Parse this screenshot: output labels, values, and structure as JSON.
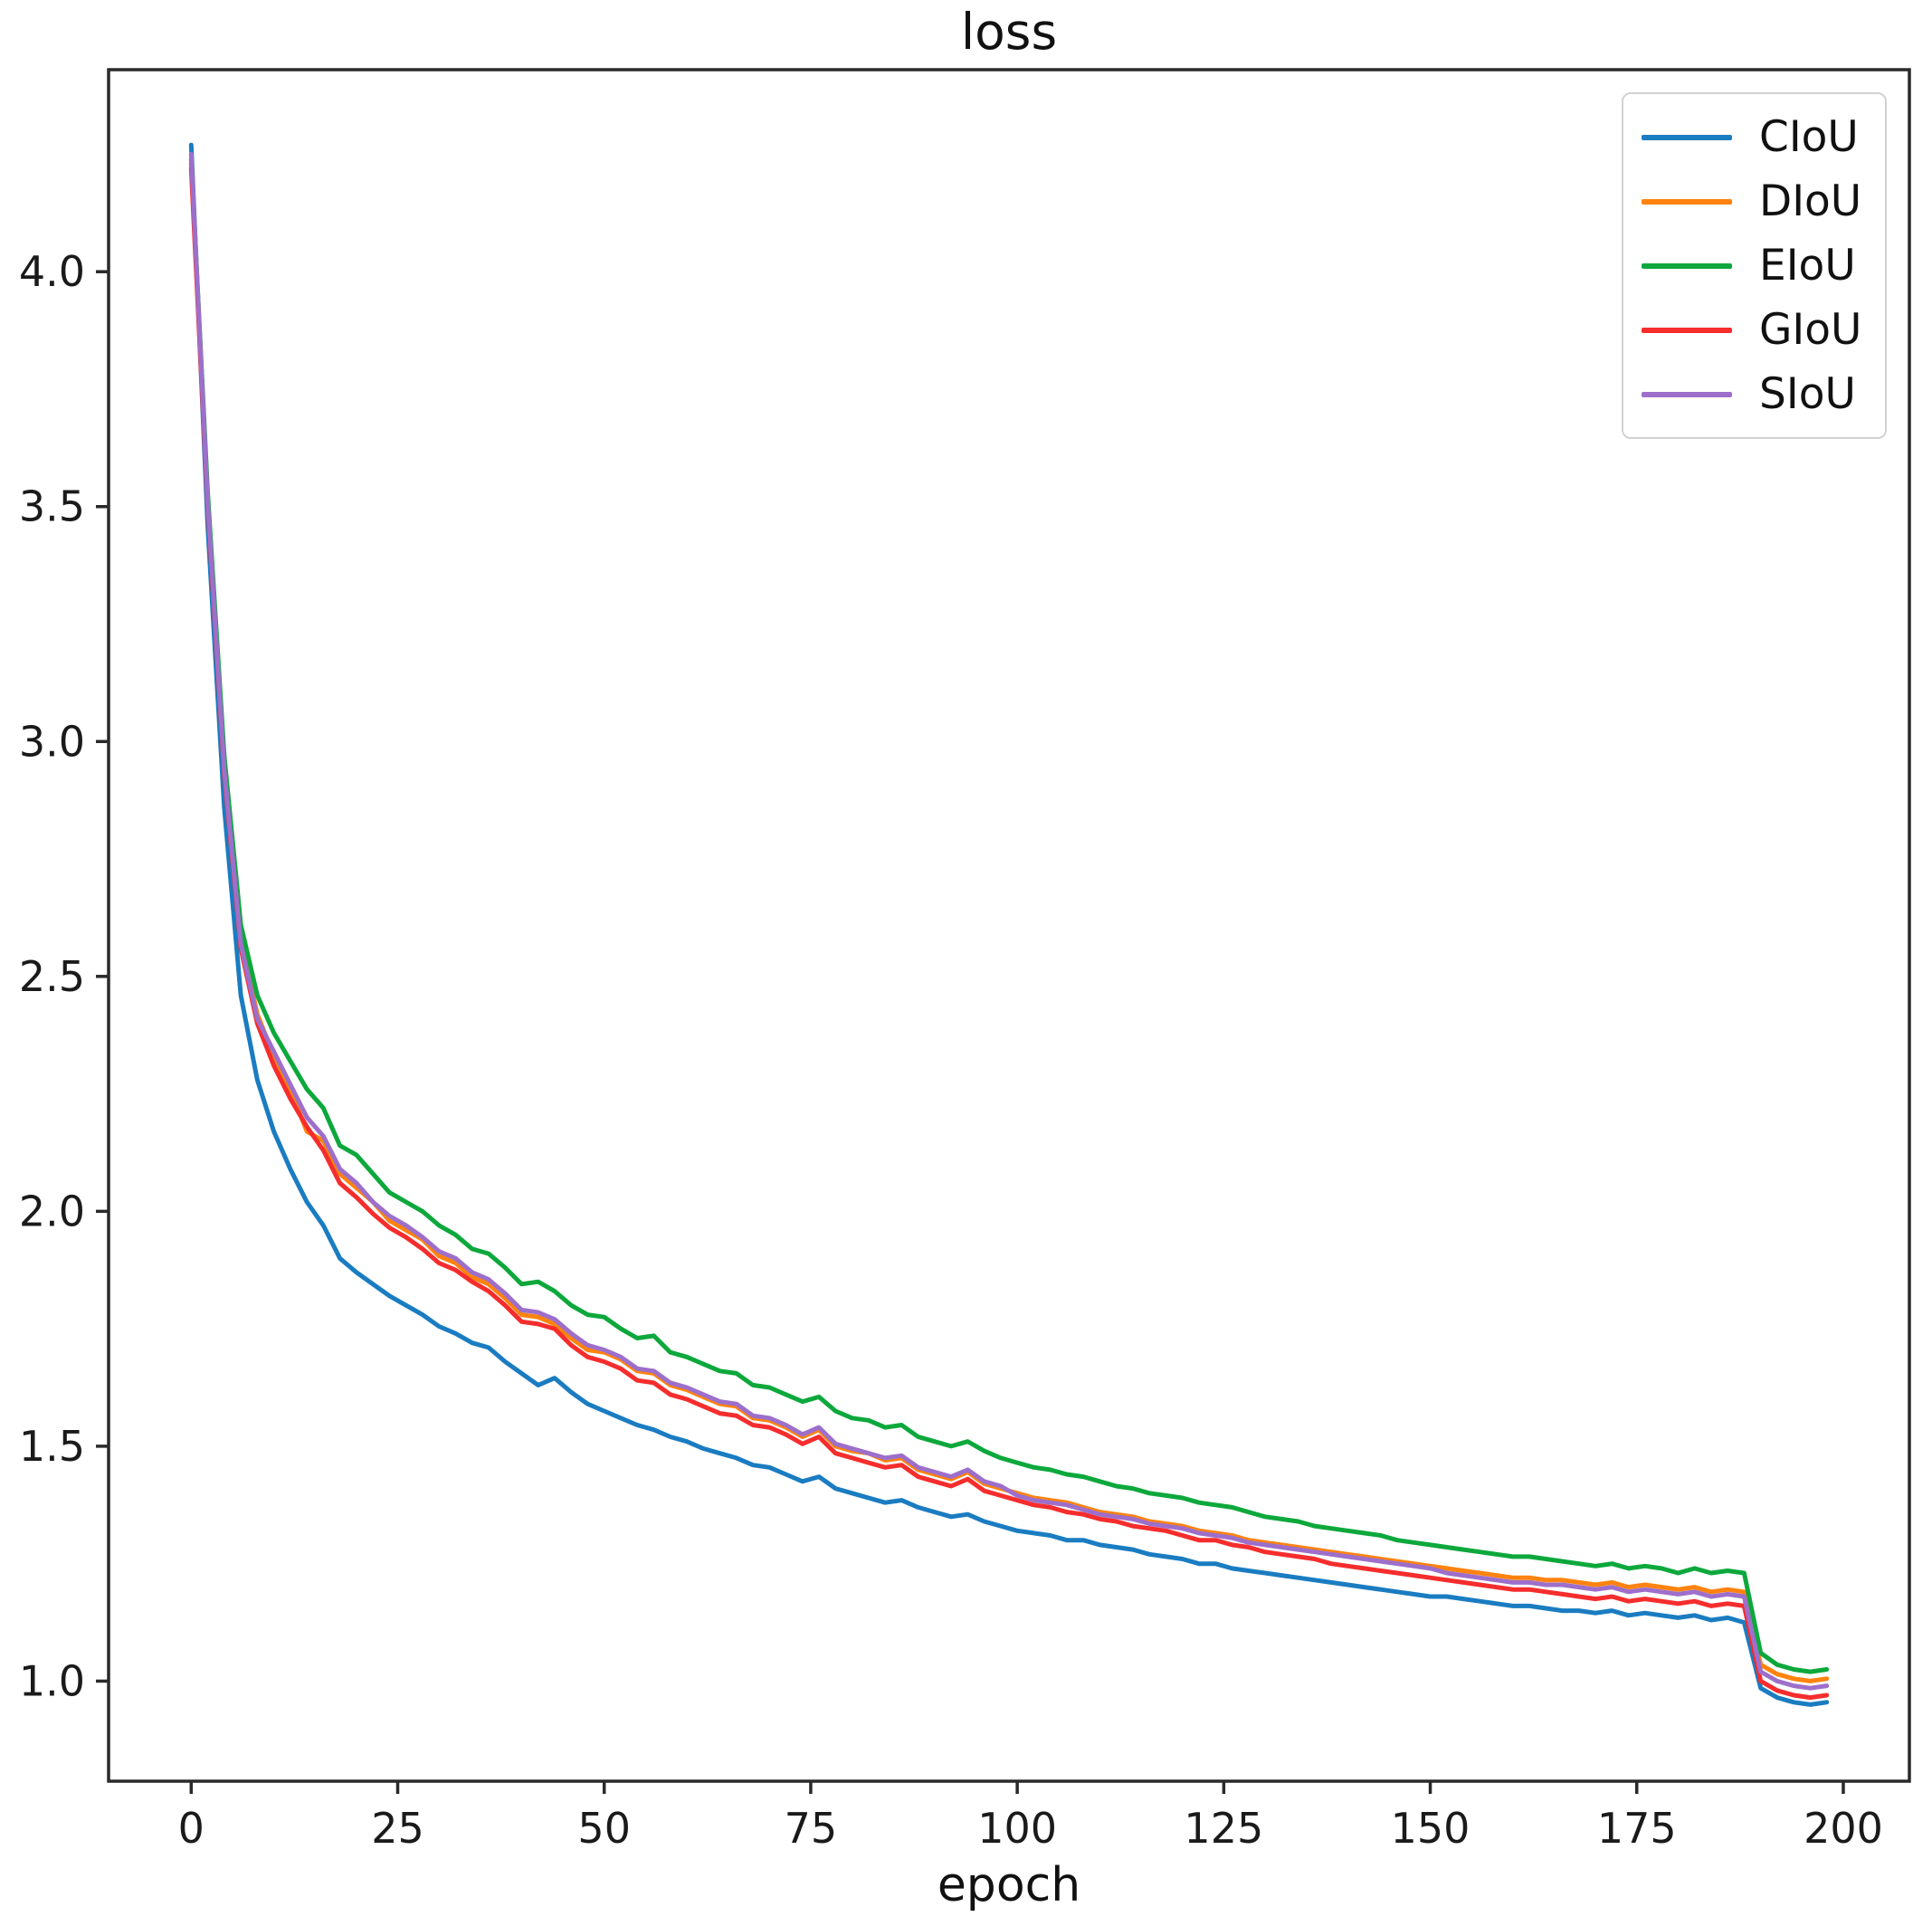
{
  "chart_data": {
    "type": "line",
    "title": "loss",
    "xlabel": "epoch",
    "ylabel": "",
    "xlim": [
      -10,
      208
    ],
    "ylim": [
      0.787,
      4.43
    ],
    "x_ticks": [
      0,
      25,
      50,
      75,
      100,
      125,
      150,
      175,
      200
    ],
    "y_ticks": [
      1.0,
      1.5,
      2.0,
      2.5,
      3.0,
      3.5,
      4.0
    ],
    "grid": false,
    "legend_position": "upper right",
    "x": [
      0,
      2,
      4,
      6,
      8,
      10,
      12,
      14,
      16,
      18,
      20,
      22,
      24,
      26,
      28,
      30,
      32,
      34,
      36,
      38,
      40,
      42,
      44,
      46,
      48,
      50,
      52,
      54,
      56,
      58,
      60,
      62,
      64,
      66,
      68,
      70,
      72,
      74,
      76,
      78,
      80,
      82,
      84,
      86,
      88,
      90,
      92,
      94,
      96,
      98,
      100,
      102,
      104,
      106,
      108,
      110,
      112,
      114,
      116,
      118,
      120,
      122,
      124,
      126,
      128,
      130,
      132,
      134,
      136,
      138,
      140,
      142,
      144,
      146,
      148,
      150,
      152,
      154,
      156,
      158,
      160,
      162,
      164,
      166,
      168,
      170,
      172,
      174,
      176,
      178,
      180,
      182,
      184,
      186,
      188,
      190,
      192,
      194,
      196,
      198
    ],
    "series": [
      {
        "name": "CIoU",
        "color": "#1a7cc1",
        "values": [
          4.27,
          3.46,
          2.86,
          2.46,
          2.28,
          2.17,
          2.09,
          2.02,
          1.97,
          1.9,
          1.87,
          1.845,
          1.82,
          1.8,
          1.78,
          1.755,
          1.74,
          1.72,
          1.71,
          1.68,
          1.655,
          1.63,
          1.645,
          1.615,
          1.59,
          1.575,
          1.56,
          1.545,
          1.535,
          1.52,
          1.51,
          1.495,
          1.485,
          1.475,
          1.46,
          1.455,
          1.44,
          1.425,
          1.435,
          1.41,
          1.4,
          1.39,
          1.38,
          1.385,
          1.37,
          1.36,
          1.35,
          1.355,
          1.34,
          1.33,
          1.32,
          1.315,
          1.31,
          1.3,
          1.3,
          1.29,
          1.285,
          1.28,
          1.27,
          1.265,
          1.26,
          1.25,
          1.25,
          1.24,
          1.235,
          1.23,
          1.225,
          1.22,
          1.215,
          1.21,
          1.205,
          1.2,
          1.195,
          1.19,
          1.185,
          1.18,
          1.18,
          1.175,
          1.17,
          1.165,
          1.16,
          1.16,
          1.155,
          1.15,
          1.15,
          1.145,
          1.15,
          1.14,
          1.145,
          1.14,
          1.135,
          1.14,
          1.13,
          1.135,
          1.125,
          0.985,
          0.965,
          0.955,
          0.95,
          0.955
        ]
      },
      {
        "name": "DIoU",
        "color": "#ff830e",
        "values": [
          4.23,
          3.52,
          2.95,
          2.58,
          2.42,
          2.33,
          2.26,
          2.17,
          2.15,
          2.08,
          2.05,
          2.02,
          1.98,
          1.96,
          1.94,
          1.905,
          1.89,
          1.86,
          1.845,
          1.815,
          1.78,
          1.775,
          1.76,
          1.73,
          1.705,
          1.7,
          1.685,
          1.66,
          1.655,
          1.63,
          1.62,
          1.605,
          1.59,
          1.585,
          1.56,
          1.555,
          1.54,
          1.52,
          1.535,
          1.5,
          1.49,
          1.485,
          1.47,
          1.475,
          1.45,
          1.44,
          1.43,
          1.445,
          1.42,
          1.41,
          1.4,
          1.39,
          1.385,
          1.38,
          1.37,
          1.36,
          1.355,
          1.35,
          1.34,
          1.335,
          1.33,
          1.32,
          1.315,
          1.31,
          1.3,
          1.295,
          1.29,
          1.285,
          1.28,
          1.275,
          1.27,
          1.265,
          1.26,
          1.255,
          1.25,
          1.245,
          1.24,
          1.235,
          1.23,
          1.225,
          1.22,
          1.22,
          1.215,
          1.215,
          1.21,
          1.205,
          1.21,
          1.2,
          1.205,
          1.2,
          1.195,
          1.2,
          1.19,
          1.195,
          1.19,
          1.035,
          1.015,
          1.005,
          1.0,
          1.005
        ]
      },
      {
        "name": "EIoU",
        "color": "#0da83c",
        "values": [
          4.24,
          3.53,
          2.97,
          2.61,
          2.46,
          2.38,
          2.32,
          2.26,
          2.22,
          2.14,
          2.12,
          2.08,
          2.04,
          2.02,
          2.0,
          1.97,
          1.95,
          1.92,
          1.91,
          1.88,
          1.845,
          1.85,
          1.83,
          1.8,
          1.78,
          1.775,
          1.75,
          1.73,
          1.735,
          1.7,
          1.69,
          1.675,
          1.66,
          1.655,
          1.63,
          1.625,
          1.61,
          1.595,
          1.605,
          1.575,
          1.56,
          1.555,
          1.54,
          1.545,
          1.52,
          1.51,
          1.5,
          1.51,
          1.49,
          1.475,
          1.465,
          1.455,
          1.45,
          1.44,
          1.435,
          1.425,
          1.415,
          1.41,
          1.4,
          1.395,
          1.39,
          1.38,
          1.375,
          1.37,
          1.36,
          1.35,
          1.345,
          1.34,
          1.33,
          1.325,
          1.32,
          1.315,
          1.31,
          1.3,
          1.295,
          1.29,
          1.285,
          1.28,
          1.275,
          1.27,
          1.265,
          1.265,
          1.26,
          1.255,
          1.25,
          1.245,
          1.25,
          1.24,
          1.245,
          1.24,
          1.23,
          1.24,
          1.23,
          1.235,
          1.23,
          1.06,
          1.035,
          1.025,
          1.02,
          1.025
        ]
      },
      {
        "name": "GIoU",
        "color": "#f52d2d",
        "values": [
          4.22,
          3.5,
          2.93,
          2.56,
          2.4,
          2.31,
          2.24,
          2.18,
          2.13,
          2.06,
          2.03,
          1.995,
          1.965,
          1.945,
          1.92,
          1.89,
          1.875,
          1.85,
          1.83,
          1.8,
          1.765,
          1.76,
          1.75,
          1.715,
          1.69,
          1.68,
          1.665,
          1.64,
          1.635,
          1.61,
          1.6,
          1.585,
          1.57,
          1.565,
          1.545,
          1.54,
          1.525,
          1.505,
          1.52,
          1.485,
          1.475,
          1.465,
          1.455,
          1.46,
          1.435,
          1.425,
          1.415,
          1.43,
          1.405,
          1.395,
          1.385,
          1.375,
          1.37,
          1.36,
          1.355,
          1.345,
          1.34,
          1.33,
          1.325,
          1.32,
          1.31,
          1.3,
          1.3,
          1.29,
          1.285,
          1.275,
          1.27,
          1.265,
          1.26,
          1.25,
          1.245,
          1.24,
          1.235,
          1.23,
          1.225,
          1.22,
          1.215,
          1.21,
          1.205,
          1.2,
          1.195,
          1.195,
          1.19,
          1.185,
          1.18,
          1.175,
          1.18,
          1.17,
          1.175,
          1.17,
          1.165,
          1.17,
          1.16,
          1.165,
          1.16,
          1.0,
          0.98,
          0.97,
          0.965,
          0.97
        ]
      },
      {
        "name": "SIoU",
        "color": "#9d6fcb",
        "values": [
          4.25,
          3.51,
          2.94,
          2.57,
          2.41,
          2.34,
          2.27,
          2.2,
          2.16,
          2.09,
          2.06,
          2.02,
          1.99,
          1.97,
          1.945,
          1.915,
          1.9,
          1.87,
          1.855,
          1.825,
          1.79,
          1.785,
          1.77,
          1.74,
          1.715,
          1.705,
          1.69,
          1.665,
          1.66,
          1.635,
          1.625,
          1.61,
          1.595,
          1.59,
          1.565,
          1.56,
          1.545,
          1.525,
          1.54,
          1.505,
          1.495,
          1.485,
          1.475,
          1.48,
          1.455,
          1.445,
          1.435,
          1.45,
          1.425,
          1.415,
          1.395,
          1.385,
          1.38,
          1.375,
          1.365,
          1.355,
          1.35,
          1.345,
          1.335,
          1.33,
          1.325,
          1.315,
          1.31,
          1.305,
          1.295,
          1.29,
          1.285,
          1.28,
          1.275,
          1.27,
          1.265,
          1.26,
          1.255,
          1.25,
          1.245,
          1.24,
          1.23,
          1.225,
          1.22,
          1.215,
          1.21,
          1.21,
          1.205,
          1.205,
          1.2,
          1.195,
          1.2,
          1.19,
          1.195,
          1.19,
          1.185,
          1.19,
          1.18,
          1.185,
          1.18,
          1.02,
          1.0,
          0.99,
          0.985,
          0.99
        ]
      }
    ],
    "axis_color": "#2a2a2a",
    "text_color": "#1a1a1a"
  }
}
